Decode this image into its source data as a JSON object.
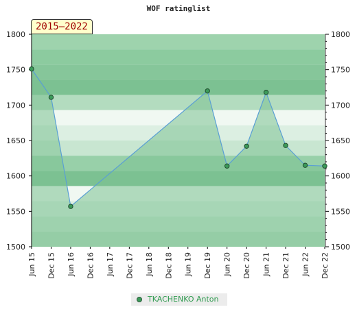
{
  "chart_data": {
    "type": "area",
    "title": "WOF ratinglist",
    "period_label": "2015–2022",
    "ylim": [
      1500,
      1800
    ],
    "y_ticks": [
      1500,
      1550,
      1600,
      1650,
      1700,
      1750,
      1800
    ],
    "x_ticks": [
      "Jun 15",
      "Dec 15",
      "Jun 16",
      "Dec 16",
      "Jun 17",
      "Dec 17",
      "Jun 18",
      "Dec 18",
      "Jun 19",
      "Dec 19",
      "Jun 20",
      "Dec 20",
      "Jun 21",
      "Dec 21",
      "Jun 22",
      "Dec 22"
    ],
    "series": [
      {
        "name": "TKACHENKO Anton",
        "points": [
          {
            "x": "Jun 15",
            "y": 1751
          },
          {
            "x": "Dec 15",
            "y": 1711
          },
          {
            "x": "Jun 16",
            "y": 1557
          },
          {
            "x": "Dec 19",
            "y": 1720
          },
          {
            "x": "Jun 20",
            "y": 1614
          },
          {
            "x": "Dec 20",
            "y": 1642
          },
          {
            "x": "Jun 21",
            "y": 1718
          },
          {
            "x": "Dec 21",
            "y": 1643
          },
          {
            "x": "Jun 22",
            "y": 1615
          },
          {
            "x": "Dec 22",
            "y": 1614
          }
        ]
      }
    ],
    "band_colors": [
      "#9ed3ad",
      "#8ccb9f",
      "#86c69a",
      "#7cc192",
      "#b3dcbf",
      "#f0f8f2",
      "#dcefe2",
      "#c8e6d1",
      "#98d0a9",
      "#7cc192",
      "#f0f8f2",
      "#dcefe2",
      "#c8e6d1",
      "#b3dcbf"
    ],
    "line_color": "#5a9fd4",
    "fill_color": "#7cc192",
    "marker_color": "#3c9a5a",
    "legend_position": "bottom-center",
    "grid": false
  }
}
